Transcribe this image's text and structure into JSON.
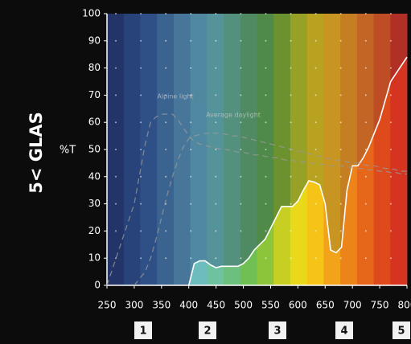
{
  "logo": "5< GLAS",
  "zones": [
    "1",
    "2",
    "3",
    "4",
    "5"
  ],
  "chart_data": {
    "type": "line",
    "ylabel": "%T",
    "x": [
      250,
      300,
      320,
      330,
      340,
      350,
      360,
      370,
      380,
      390,
      400,
      410,
      420,
      430,
      440,
      450,
      460,
      470,
      480,
      490,
      500,
      510,
      520,
      530,
      540,
      550,
      560,
      570,
      580,
      590,
      600,
      610,
      620,
      630,
      640,
      650,
      660,
      670,
      680,
      690,
      700,
      710,
      720,
      730,
      740,
      750,
      760,
      770,
      780,
      790,
      800
    ],
    "series": [
      {
        "color": "#ffffff",
        "dashed": false,
        "values": [
          null,
          null,
          null,
          null,
          null,
          null,
          null,
          null,
          null,
          null,
          0,
          8,
          9,
          9,
          7.5,
          6.5,
          7,
          7,
          7,
          7,
          8,
          10,
          13,
          15,
          17,
          21,
          25,
          29,
          29,
          29,
          31,
          35,
          38.5,
          38,
          37,
          30,
          13,
          12,
          14,
          35,
          44,
          44,
          47,
          51,
          56,
          61,
          68,
          75,
          78,
          81,
          84
        ]
      },
      {
        "name": "Alpine light",
        "color": "#9a9a9a",
        "dashed": true,
        "values": [
          0,
          30,
          52,
          60,
          62,
          63,
          63,
          63,
          61,
          58,
          55,
          53,
          52,
          51.5,
          51,
          50.5,
          50,
          50,
          49.5,
          49,
          49,
          48.5,
          48,
          48,
          47.5,
          47,
          47,
          46.5,
          46,
          46,
          45.5,
          45.5,
          45,
          45,
          44.5,
          44.5,
          44,
          44,
          44,
          43.5,
          43.5,
          43,
          43,
          42.5,
          42.5,
          42,
          42,
          41.5,
          41.5,
          41,
          41
        ]
      },
      {
        "name": "Average daylight",
        "color": "#9a9a9a",
        "dashed": true,
        "values": [
          null,
          0,
          5,
          10,
          17,
          25,
          33,
          40,
          46,
          51,
          54,
          55,
          55.5,
          56,
          56,
          56,
          56,
          55.5,
          55,
          55,
          54.5,
          54,
          53.5,
          53,
          52.5,
          52,
          51.5,
          51,
          50.5,
          50,
          49.5,
          49,
          48.5,
          48,
          47.5,
          47,
          46.5,
          46,
          46,
          45.5,
          45,
          45,
          44.5,
          44,
          44,
          43.5,
          43,
          43,
          42.5,
          42,
          42
        ]
      }
    ],
    "xlim": [
      250,
      800
    ],
    "ylim": [
      0,
      100
    ],
    "xticks": [
      250,
      300,
      350,
      400,
      450,
      500,
      550,
      600,
      650,
      700,
      750,
      800
    ],
    "yticks": [
      0,
      10,
      20,
      30,
      40,
      50,
      60,
      70,
      80,
      90,
      100
    ],
    "grid": true
  }
}
